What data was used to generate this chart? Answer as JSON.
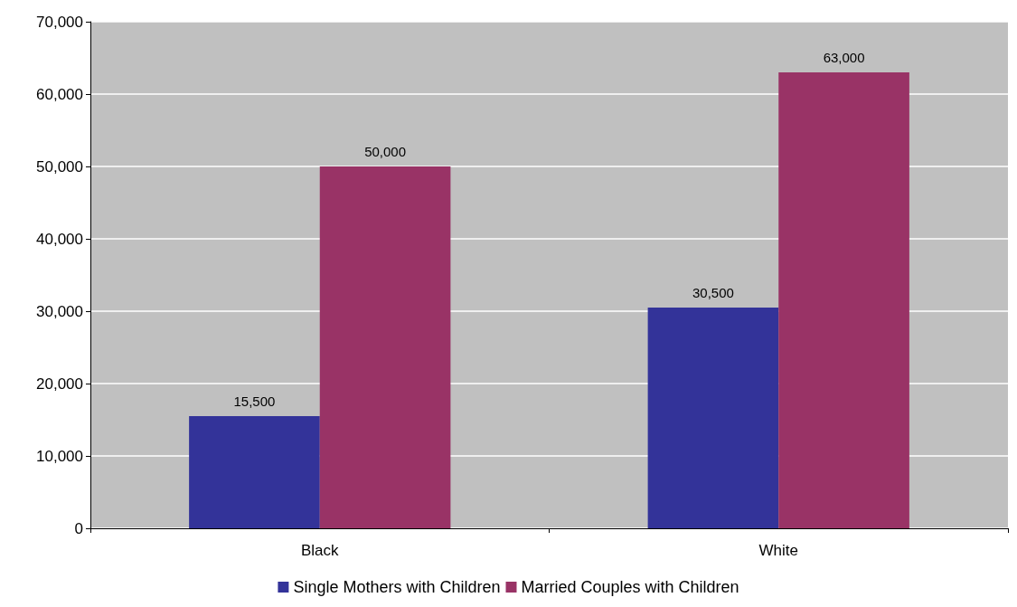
{
  "chart_data": {
    "type": "bar",
    "categories": [
      "Black",
      "White"
    ],
    "series": [
      {
        "name": "Single Mothers with Children",
        "color": "#333399",
        "values": [
          15500,
          30500
        ],
        "value_labels": [
          "15,500",
          "30,500"
        ]
      },
      {
        "name": "Married Couples with Children",
        "color": "#993366",
        "values": [
          50000,
          63000
        ],
        "value_labels": [
          "50,000",
          "63,000"
        ]
      }
    ],
    "ylim": [
      0,
      70000
    ],
    "yticks": [
      0,
      {
        "value": 10000,
        "label": "10,000"
      },
      {
        "value": 20000,
        "label": "20,000"
      },
      {
        "value": 30000,
        "label": "30,000"
      },
      {
        "value": 40000,
        "label": "40,000"
      },
      {
        "value": 50000,
        "label": "50,000"
      },
      {
        "value": 60000,
        "label": "60,000"
      },
      {
        "value": 70000,
        "label": "70,000"
      }
    ],
    "grid": "y",
    "legend": "bottom"
  }
}
